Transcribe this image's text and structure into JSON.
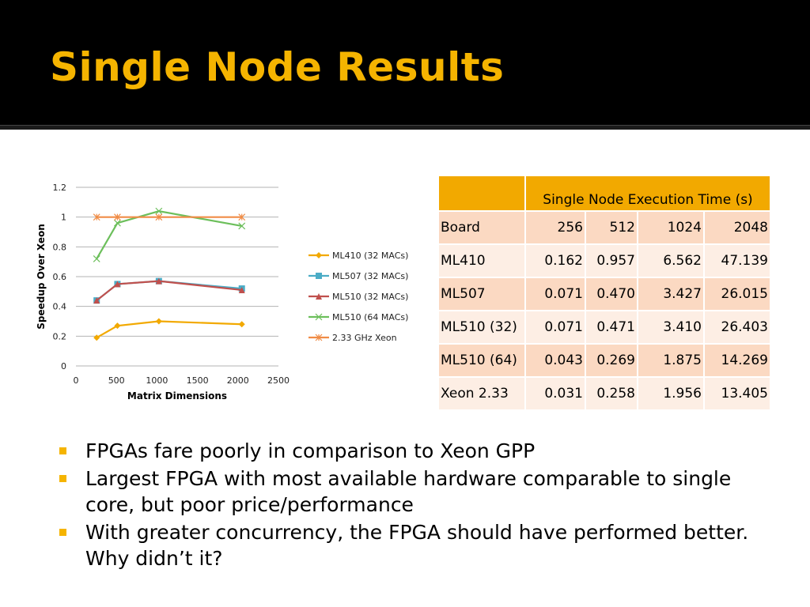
{
  "slide": {
    "title": "Single Node Results"
  },
  "chart_data": {
    "type": "line",
    "title": "",
    "xlabel": "Matrix Dimensions",
    "ylabel": "Speedup Over Xeon",
    "xlim": [
      0,
      2500
    ],
    "ylim": [
      0,
      1.2
    ],
    "xticks": [
      0,
      500,
      1000,
      1500,
      2000,
      2500
    ],
    "yticks": [
      0,
      0.2,
      0.4,
      0.6,
      0.8,
      1,
      1.2
    ],
    "grid": "horizontal",
    "legend": "right",
    "x": [
      256,
      512,
      1024,
      2048
    ],
    "series": [
      {
        "name": "ML410 (32 MACs)",
        "values": [
          0.19,
          0.27,
          0.3,
          0.28
        ],
        "color": "#f2a900",
        "marker": "diamond"
      },
      {
        "name": "ML507 (32 MACs)",
        "values": [
          0.44,
          0.55,
          0.57,
          0.52
        ],
        "color": "#4bacc6",
        "marker": "square"
      },
      {
        "name": "ML510 (32 MACs)",
        "values": [
          0.44,
          0.55,
          0.57,
          0.51
        ],
        "color": "#c0504d",
        "marker": "triangle"
      },
      {
        "name": "ML510 (64 MACs)",
        "values": [
          0.72,
          0.96,
          1.04,
          0.94
        ],
        "color": "#6cbf5b",
        "marker": "x"
      },
      {
        "name": "2.33 GHz Xeon",
        "values": [
          1,
          1,
          1,
          1
        ],
        "color": "#f08c46",
        "marker": "star"
      }
    ]
  },
  "table": {
    "header": "Single Node Execution Time (s)",
    "columns": [
      "Board",
      "256",
      "512",
      "1024",
      "2048"
    ],
    "rows": [
      [
        "ML410",
        "0.162",
        "0.957",
        "6.562",
        "47.139"
      ],
      [
        "ML507",
        "0.071",
        "0.470",
        "3.427",
        "26.015"
      ],
      [
        "ML510 (32)",
        "0.071",
        "0.471",
        "3.410",
        "26.403"
      ],
      [
        "ML510 (64)",
        "0.043",
        "0.269",
        "1.875",
        "14.269"
      ],
      [
        "Xeon 2.33",
        "0.031",
        "0.258",
        "1.956",
        "13.405"
      ]
    ]
  },
  "bullets": [
    "FPGAs fare poorly in comparison to Xeon GPP",
    "Largest FPGA with most available hardware comparable to single core, but poor price/performance",
    "With greater concurrency, the FPGA should have performed better. Why didn’t it?"
  ],
  "colors": {
    "accent": "#f5b400",
    "header_bg": "#000000"
  }
}
